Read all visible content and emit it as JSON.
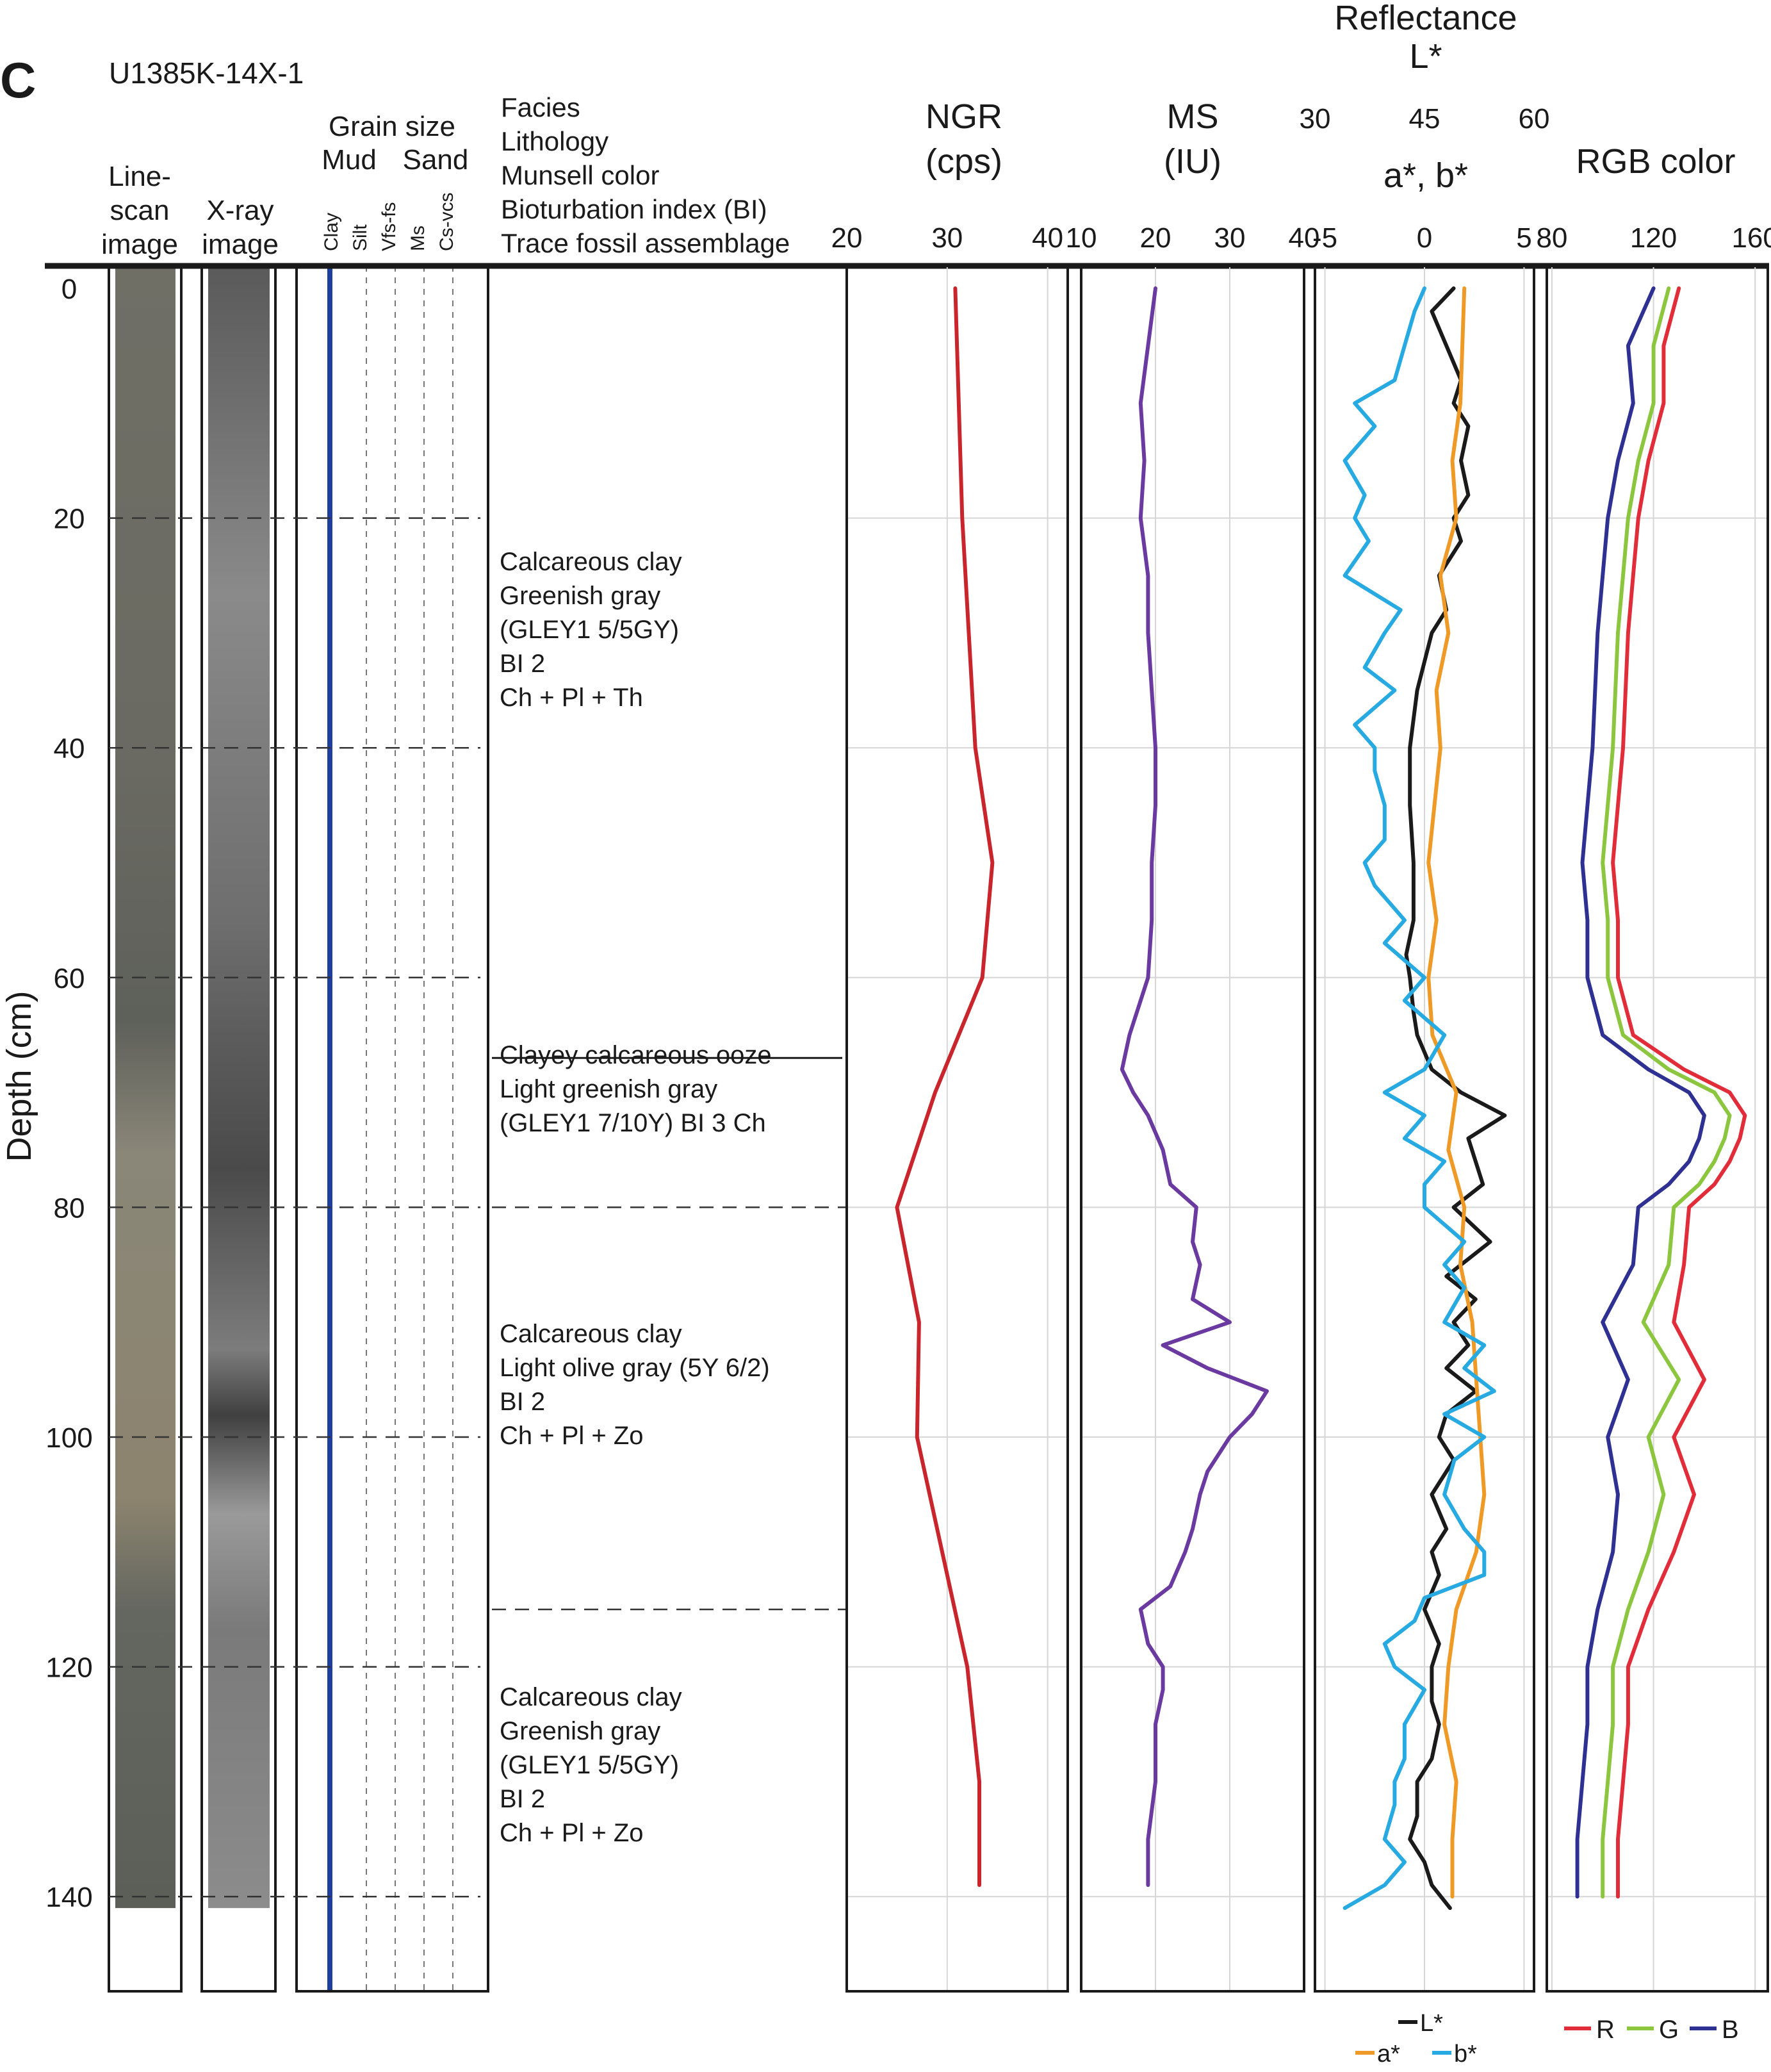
{
  "panel_letter": "C",
  "core_id": "U1385K-14X-1",
  "depth_axis": {
    "label": "Depth (cm)",
    "ticks": [
      0,
      20,
      40,
      60,
      80,
      100,
      120,
      140
    ],
    "range": [
      0,
      150
    ],
    "inverted": true
  },
  "images": {
    "linescan_label": [
      "Line-",
      "scan",
      "image"
    ],
    "xray_label": [
      "X-ray",
      "image"
    ],
    "bottom_depth": 141
  },
  "grain_size": {
    "title": "Grain size",
    "group_labels": [
      "Mud",
      "Sand"
    ],
    "class_labels": [
      "Clay",
      "Silt",
      "Vfs-fs",
      "Ms",
      "Cs-vcs"
    ],
    "line_color": "#1f3f9c"
  },
  "description_header": [
    "Facies",
    "Lithology",
    "Munsell color",
    "Bioturbation index (BI)",
    "Trace fossil assemblage"
  ],
  "units": [
    {
      "top": 0,
      "bottom": 67,
      "lines": [
        "Calcareous clay",
        "Greenish gray",
        "(GLEY1 5/5GY)",
        "BI 2",
        "Ch + Pl + Th"
      ]
    },
    {
      "top": 67,
      "bottom": 80,
      "lines": [
        "Clayey calcareous ooze",
        "Light greenish gray",
        "(GLEY1 7/10Y) BI 3    Ch"
      ]
    },
    {
      "top": 80,
      "bottom": 115,
      "lines": [
        "Calcareous clay",
        "Light olive gray (5Y 6/2)",
        "BI 2",
        "Ch + Pl + Zo"
      ]
    },
    {
      "top": 115,
      "bottom": 141,
      "lines": [
        "Calcareous clay",
        "Greenish gray",
        "(GLEY1 5/5GY)",
        "BI 2",
        "Ch + Pl + Zo"
      ]
    }
  ],
  "chart_data": [
    {
      "type": "line",
      "title": "NGR",
      "unit": "(cps)",
      "xlim": [
        20,
        42
      ],
      "xticks": [
        20,
        30,
        40
      ],
      "series": [
        {
          "color": "#c8252c",
          "depth": [
            0,
            20,
            40,
            50,
            60,
            70,
            80,
            90,
            100,
            110,
            120,
            130,
            139
          ],
          "values": [
            30.8,
            31.5,
            32.8,
            34.5,
            33.5,
            28.8,
            25.0,
            27.2,
            27.0,
            29.5,
            32.0,
            33.2,
            33.2
          ]
        }
      ]
    },
    {
      "type": "line",
      "title": "MS",
      "unit": "(IU)",
      "xlim": [
        10,
        40
      ],
      "xticks": [
        10,
        20,
        30,
        40
      ],
      "series": [
        {
          "color": "#6b3aa0",
          "depth": [
            0,
            5,
            10,
            15,
            20,
            25,
            30,
            35,
            40,
            45,
            50,
            55,
            60,
            62,
            65,
            68,
            70,
            72,
            75,
            78,
            80,
            83,
            85,
            88,
            90,
            92,
            94,
            96,
            98,
            100,
            103,
            105,
            108,
            110,
            113,
            115,
            118,
            120,
            122,
            125,
            130,
            135,
            138,
            139
          ],
          "values": [
            20,
            19,
            18,
            18.5,
            18,
            19,
            19,
            19.5,
            20,
            20,
            19.5,
            19.5,
            19,
            18,
            16.5,
            15.5,
            17,
            19,
            21,
            22,
            25.5,
            25,
            26,
            25,
            30,
            21,
            27,
            35,
            33,
            30,
            27,
            26,
            25,
            24,
            22,
            18,
            19,
            21,
            21,
            20,
            20,
            19,
            19,
            19
          ]
        }
      ]
    },
    {
      "type": "line",
      "title": "Reflectance",
      "subtitle": "L*",
      "xlabel_top": "a*, b*",
      "xlim": [
        -5.5,
        5.5
      ],
      "xticks": [
        -5,
        0,
        5
      ],
      "xlim_top": [
        30,
        60
      ],
      "xticks_top": [
        30,
        45,
        60
      ],
      "legend": [
        {
          "name": "L*",
          "color": "#1a1a1a"
        },
        {
          "name": "a*",
          "color": "#ef9a26"
        },
        {
          "name": "b*",
          "color": "#27a9e1"
        }
      ],
      "series": [
        {
          "name": "L*",
          "axis": "top",
          "color": "#1a1a1a",
          "depth": [
            0,
            2,
            5,
            8,
            10,
            12,
            15,
            18,
            20,
            22,
            25,
            28,
            30,
            35,
            40,
            45,
            50,
            55,
            58,
            60,
            63,
            65,
            68,
            70,
            72,
            74,
            76,
            78,
            80,
            83,
            86,
            88,
            90,
            92,
            94,
            96,
            98,
            100,
            102,
            105,
            108,
            110,
            112,
            115,
            118,
            120,
            123,
            125,
            128,
            130,
            133,
            135,
            137,
            139,
            141
          ],
          "values": [
            49,
            46,
            48,
            50,
            49,
            51,
            50,
            51,
            49,
            50,
            47,
            48,
            46,
            44,
            43,
            43,
            43.5,
            43.5,
            42.5,
            43,
            43.5,
            44,
            46,
            50,
            56,
            51,
            52,
            53,
            49,
            54,
            48,
            52,
            49,
            51,
            48,
            52,
            48,
            47,
            49,
            46,
            48,
            46,
            47,
            45,
            47,
            46,
            46,
            47,
            46,
            44,
            44,
            43,
            45,
            46,
            48.5
          ]
        },
        {
          "name": "a*",
          "axis": "bottom",
          "color": "#ef9a26",
          "depth": [
            0,
            10,
            15,
            20,
            25,
            30,
            35,
            40,
            50,
            55,
            60,
            65,
            70,
            75,
            80,
            85,
            90,
            95,
            100,
            105,
            110,
            115,
            120,
            125,
            130,
            135,
            140
          ],
          "values": [
            2.0,
            1.8,
            1.4,
            1.6,
            0.8,
            1.2,
            0.6,
            0.8,
            0.2,
            0.6,
            0.2,
            0.4,
            1.6,
            1.2,
            2.0,
            1.8,
            2.4,
            2.6,
            2.8,
            3.0,
            2.6,
            1.6,
            1.2,
            1.0,
            1.6,
            1.4,
            1.4
          ]
        },
        {
          "name": "b*",
          "axis": "bottom",
          "color": "#27a9e1",
          "depth": [
            0,
            2,
            5,
            8,
            10,
            12,
            15,
            18,
            20,
            22,
            25,
            28,
            30,
            33,
            35,
            38,
            40,
            42,
            45,
            48,
            50,
            52,
            55,
            57,
            60,
            62,
            65,
            68,
            70,
            72,
            74,
            76,
            78,
            80,
            83,
            85,
            87,
            90,
            92,
            94,
            96,
            98,
            100,
            102,
            105,
            108,
            110,
            112,
            114,
            116,
            118,
            120,
            122,
            125,
            128,
            130,
            132,
            135,
            137,
            139,
            141
          ],
          "values": [
            0.0,
            -0.5,
            -1.0,
            -1.5,
            -3.5,
            -2.5,
            -4.0,
            -3.0,
            -3.5,
            -2.8,
            -4.0,
            -1.2,
            -2.0,
            -3.0,
            -1.5,
            -3.5,
            -2.5,
            -2.5,
            -2.0,
            -2.0,
            -3.0,
            -2.5,
            -1.0,
            -2.0,
            0.0,
            -1.0,
            1.0,
            0.0,
            -2.0,
            0.0,
            -1.0,
            1.0,
            0.0,
            0.0,
            2.0,
            1.0,
            2.0,
            1.0,
            3.0,
            2.0,
            3.5,
            1.0,
            3.0,
            1.5,
            1.0,
            2.0,
            3.0,
            3.0,
            0.0,
            -0.5,
            -2.0,
            -1.5,
            0.0,
            -1.0,
            -1.0,
            -1.5,
            -1.5,
            -2.0,
            -1.0,
            -2.0,
            -4.0
          ]
        }
      ]
    },
    {
      "type": "line",
      "title": "RGB color",
      "xlim": [
        78,
        165
      ],
      "xticks": [
        80,
        120,
        160
      ],
      "legend": [
        {
          "name": "R",
          "color": "#e12d39"
        },
        {
          "name": "G",
          "color": "#8cc63f"
        },
        {
          "name": "B",
          "color": "#2e3192"
        }
      ],
      "series": [
        {
          "name": "R",
          "color": "#e12d39",
          "depth": [
            0,
            5,
            10,
            15,
            20,
            25,
            30,
            40,
            50,
            55,
            60,
            65,
            68,
            70,
            72,
            74,
            76,
            78,
            80,
            85,
            90,
            95,
            100,
            105,
            110,
            115,
            120,
            125,
            130,
            135,
            140
          ],
          "values": [
            130,
            124,
            124,
            118,
            114,
            112,
            110,
            108,
            104,
            106,
            106,
            112,
            132,
            150,
            156,
            154,
            150,
            144,
            134,
            132,
            128,
            140,
            128,
            136,
            128,
            118,
            110,
            110,
            108,
            106,
            106
          ]
        },
        {
          "name": "G",
          "color": "#8cc63f",
          "depth": [
            0,
            5,
            10,
            15,
            20,
            25,
            30,
            40,
            50,
            55,
            60,
            65,
            68,
            70,
            72,
            74,
            76,
            78,
            80,
            85,
            90,
            95,
            100,
            105,
            110,
            115,
            120,
            125,
            130,
            135,
            140
          ],
          "values": [
            126,
            120,
            120,
            114,
            110,
            108,
            106,
            104,
            100,
            102,
            102,
            108,
            126,
            144,
            150,
            148,
            144,
            138,
            128,
            126,
            116,
            130,
            118,
            124,
            118,
            110,
            104,
            104,
            102,
            100,
            100
          ]
        },
        {
          "name": "B",
          "color": "#2e3192",
          "depth": [
            0,
            5,
            10,
            15,
            20,
            25,
            30,
            40,
            50,
            55,
            60,
            65,
            68,
            70,
            72,
            74,
            76,
            78,
            80,
            85,
            90,
            95,
            100,
            105,
            110,
            115,
            120,
            125,
            130,
            135,
            140
          ],
          "values": [
            120,
            110,
            112,
            106,
            102,
            100,
            98,
            96,
            92,
            94,
            94,
            100,
            118,
            134,
            140,
            138,
            134,
            126,
            114,
            112,
            100,
            110,
            102,
            106,
            104,
            98,
            94,
            94,
            92,
            90,
            90
          ]
        }
      ]
    }
  ]
}
